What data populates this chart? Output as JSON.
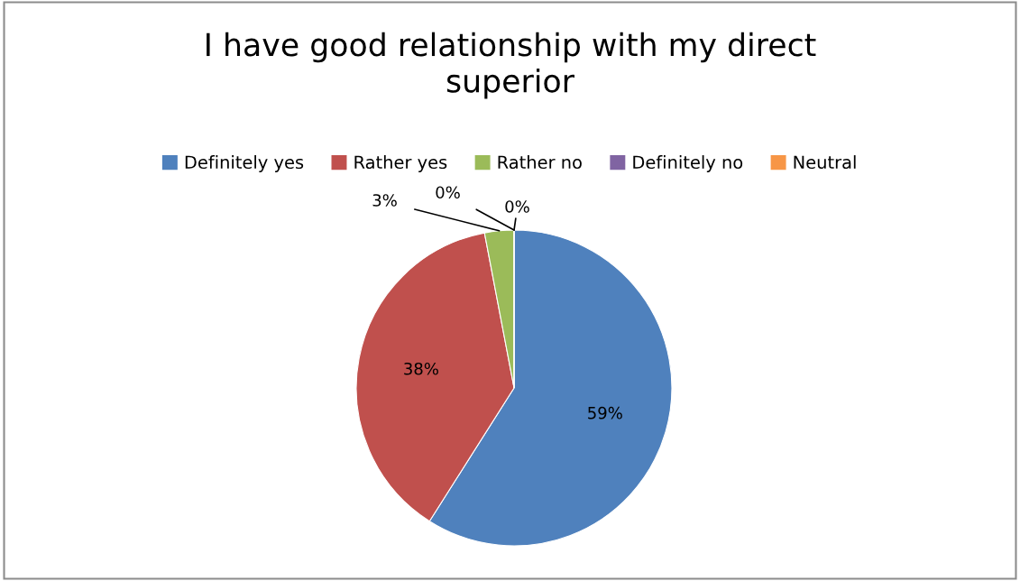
{
  "chart_data": {
    "type": "pie",
    "title": "I have good relationship with my direct\nsuperior",
    "categories": [
      "Definitely yes",
      "Rather yes",
      "Rather no",
      "Definitely no",
      "Neutral"
    ],
    "values": [
      59,
      38,
      3,
      0,
      0
    ],
    "colors": [
      "#4f81bd",
      "#c0504d",
      "#9bbb59",
      "#8064a2",
      "#f79646"
    ],
    "value_labels": [
      "59%",
      "38%",
      "3%",
      "0%",
      "0%"
    ],
    "legend": "top"
  }
}
